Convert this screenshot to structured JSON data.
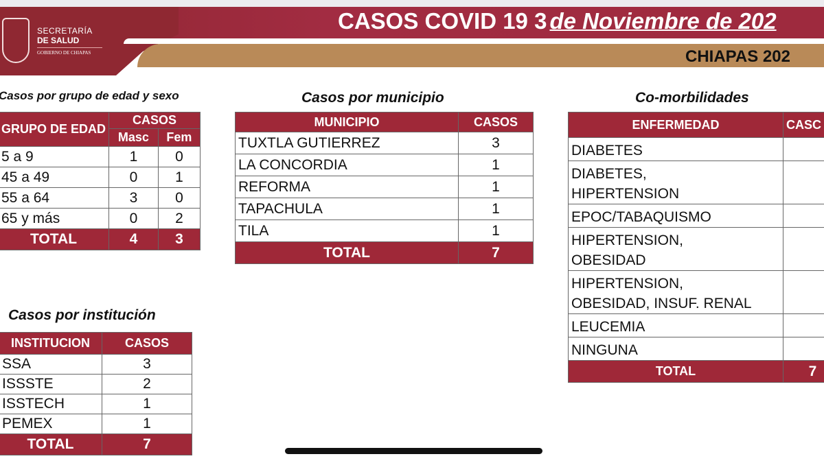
{
  "header": {
    "org_line1": "SECRETARÍA",
    "org_line2": "DE SALUD",
    "org_line3": "GOBIERNO DE CHIAPAS",
    "title_prefix": "CASOS COVID 19 3",
    "title_date": "de Noviembre de 202",
    "subtitle": "CHIAPAS 202"
  },
  "edad": {
    "title": "Casos por grupo de edad y sexo",
    "col_group": "GRUPO DE EDAD",
    "col_casos": "CASOS",
    "col_masc": "Masc",
    "col_fem": "Fem",
    "rows": [
      {
        "g": "5 a 9",
        "m": "1",
        "f": "0"
      },
      {
        "g": "45 a 49",
        "m": "0",
        "f": "1"
      },
      {
        "g": "55 a 64",
        "m": "3",
        "f": "0"
      },
      {
        "g": "65 y más",
        "m": "0",
        "f": "2"
      }
    ],
    "total_label": "TOTAL",
    "total_m": "4",
    "total_f": "3"
  },
  "municipio": {
    "title": "Casos por municipio",
    "col1": "MUNICIPIO",
    "col2": "CASOS",
    "rows": [
      {
        "n": "TUXTLA GUTIERREZ",
        "v": "3"
      },
      {
        "n": "LA CONCORDIA",
        "v": "1"
      },
      {
        "n": "REFORMA",
        "v": "1"
      },
      {
        "n": "TAPACHULA",
        "v": "1"
      },
      {
        "n": "TILA",
        "v": "1"
      }
    ],
    "total_label": "TOTAL",
    "total": "7"
  },
  "comorb": {
    "title": "Co-morbilidades",
    "col1": "ENFERMEDAD",
    "col2": "CASC",
    "rows": [
      [
        "DIABETES"
      ],
      [
        "DIABETES,",
        "HIPERTENSION"
      ],
      [
        "EPOC/TABAQUISMO"
      ],
      [
        "HIPERTENSION,",
        "OBESIDAD"
      ],
      [
        "HIPERTENSION,",
        "OBESIDAD, INSUF. RENAL"
      ],
      [
        "LEUCEMIA"
      ],
      [
        "NINGUNA"
      ]
    ],
    "total_label": "TOTAL",
    "total": "7"
  },
  "institucion": {
    "title": "Casos por institución",
    "col1": "INSTITUCION",
    "col2": "CASOS",
    "rows": [
      {
        "n": "SSA",
        "v": "3"
      },
      {
        "n": "ISSSTE",
        "v": "2"
      },
      {
        "n": "ISSTECH",
        "v": "1"
      },
      {
        "n": "PEMEX",
        "v": "1"
      }
    ],
    "total_label": "TOTAL",
    "total": "7"
  },
  "colors": {
    "primary": "#9f2838",
    "gold": "#b98a58"
  }
}
